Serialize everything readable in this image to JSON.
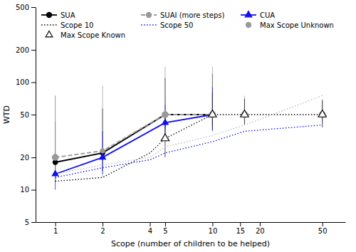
{
  "chart_data": {
    "type": "line",
    "xlabel": "Scope (number of children to be helped)",
    "ylabel": "WTD",
    "log": true,
    "xlim": [
      0.75,
      70
    ],
    "ylim": [
      5,
      500
    ],
    "xticks": [
      1,
      2,
      4,
      5,
      10,
      15,
      20,
      50
    ],
    "yticks": [
      5,
      10,
      20,
      50,
      100,
      200,
      500
    ],
    "grid": false,
    "legend": "upper-left",
    "series": [
      {
        "name": "SUA",
        "type": "line",
        "color": "#000000",
        "line_style": "solid",
        "marker": "circle",
        "x": [
          1,
          2,
          5,
          10
        ],
        "values": [
          18,
          22,
          50,
          50
        ],
        "errors_low": [
          6,
          7,
          12,
          10
        ],
        "errors_high": [
          25,
          35,
          60,
          70
        ]
      },
      {
        "name": "SUAI (more steps)",
        "type": "line",
        "color": "#999999",
        "line_style": "dashed",
        "marker": "circle",
        "x": [
          1,
          2,
          5,
          10
        ],
        "values": [
          20,
          23,
          50,
          50
        ],
        "errors_low": [
          8,
          10,
          14,
          12
        ],
        "errors_high": [
          55,
          70,
          90,
          90
        ]
      },
      {
        "name": "CUA",
        "type": "line",
        "color": "#1111EE",
        "line_style": "solid",
        "marker": "triangle",
        "x": [
          1,
          2,
          5,
          10
        ],
        "values": [
          14,
          20,
          42,
          50
        ],
        "errors_low": [
          4,
          6,
          12,
          15
        ],
        "errors_high": [
          8,
          15,
          20,
          40
        ]
      },
      {
        "name": "Scope 10",
        "type": "line",
        "color": "#000000",
        "line_style": "dotted",
        "x": [
          1,
          2,
          4,
          5,
          10,
          16,
          50
        ],
        "values": [
          12,
          13,
          22,
          30,
          50,
          50,
          50
        ]
      },
      {
        "name": "Scope 50",
        "type": "line",
        "color": "#1111EE",
        "line_style": "dotted",
        "x": [
          1,
          2,
          4,
          5,
          10,
          16,
          50
        ],
        "values": [
          13,
          16,
          19,
          22,
          28,
          35,
          40
        ]
      },
      {
        "type": "line",
        "color": "#bbbbbb",
        "line_style": "dotted",
        "x": [
          1,
          2,
          4,
          5,
          10,
          16,
          50
        ],
        "values": [
          14,
          17,
          20,
          25,
          32,
          40,
          75
        ]
      },
      {
        "name": "Max Scope Unknown",
        "type": "scatter",
        "color": "#999999",
        "marker": "circle",
        "x": [
          1,
          5,
          10,
          16,
          50
        ],
        "values": [
          20,
          50,
          50,
          50,
          50
        ],
        "errors_low": [
          8,
          14,
          12,
          8,
          8
        ],
        "errors_high": [
          55,
          35,
          30,
          25,
          20
        ]
      },
      {
        "name": "Max Scope Known",
        "type": "scatter",
        "color": "#000000",
        "marker": "triangle-open",
        "x": [
          5,
          10,
          16,
          50
        ],
        "values": [
          30,
          50,
          50,
          50
        ],
        "errors_low": [
          10,
          14,
          10,
          12
        ],
        "errors_high": [
          20,
          30,
          20,
          18
        ]
      }
    ]
  }
}
